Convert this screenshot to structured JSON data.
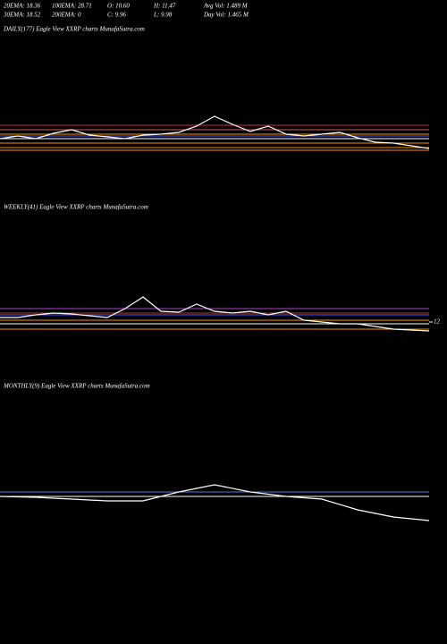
{
  "header": {
    "row1": [
      "20EMA: 18.36",
      "100EMA: 28.71",
      "O: 10.60",
      "H: 11.47",
      "Avg Vol: 1.489 M"
    ],
    "row2": [
      "30EMA: 18.52",
      "200EMA: 0",
      "C: 9.96",
      "L: 9.98",
      "Day Vol: 1.465 M"
    ]
  },
  "panels": [
    {
      "label": "DAILY(177) Eagle  View  XXRP charts MunafaSutra.com",
      "ylim": [
        4,
        30
      ],
      "ticks": [],
      "price": [
        11,
        11.6,
        11,
        12.2,
        13,
        11.8,
        11.4,
        11,
        11.8,
        12,
        12.4,
        13.8,
        16,
        14.2,
        12.6,
        13.8,
        12,
        11.6,
        12,
        12.4,
        11.2,
        10.2,
        10,
        9.4,
        8.8
      ],
      "lines": [
        {
          "color": "#c03030",
          "value": 14
        },
        {
          "color": "#d06060",
          "value": 13
        },
        {
          "color": "#ff8c00",
          "value": 12
        },
        {
          "color": "#4060ff",
          "value": 11.6
        },
        {
          "color": "#ffffff",
          "value": 11
        },
        {
          "color": "#ff8c00",
          "value": 10
        },
        {
          "color": "#ff8c00",
          "value": 9
        },
        {
          "color": "#ff8c00",
          "value": 8.4
        }
      ]
    },
    {
      "label": "WEEKLY(41) Eagle  View  XXRP charts MunafaSutra.com",
      "ylim": [
        6,
        32
      ],
      "ticks": [
        12
      ],
      "price": [
        13,
        13,
        13.6,
        14,
        13.8,
        13.4,
        13,
        15,
        17.6,
        14.4,
        14.2,
        16,
        14.4,
        14,
        14.4,
        13.6,
        14.4,
        12.4,
        12,
        11.6,
        11.6,
        11,
        10.4,
        10.2,
        10
      ],
      "lines": [
        {
          "color": "#b040d0",
          "value": 15
        },
        {
          "color": "#c03030",
          "value": 14
        },
        {
          "color": "#4060ff",
          "value": 13.6
        },
        {
          "color": "#ff8c00",
          "value": 12.4
        },
        {
          "color": "#ffffff",
          "value": 11.6
        },
        {
          "color": "#ff8c00",
          "value": 10.4
        }
      ]
    },
    {
      "label": "MONTHLY(9) Eagle  View  XXRP charts MunafaSutra.com",
      "ylim": [
        6,
        32
      ],
      "ticks": [],
      "price": [
        13,
        12.8,
        12.4,
        12,
        12,
        14,
        15.6,
        14,
        13,
        12.4,
        10,
        8.4,
        7.6
      ],
      "lines": [
        {
          "color": "#4a7fd0",
          "value": 14
        },
        {
          "color": "#ffffff",
          "value": 13
        }
      ]
    }
  ]
}
